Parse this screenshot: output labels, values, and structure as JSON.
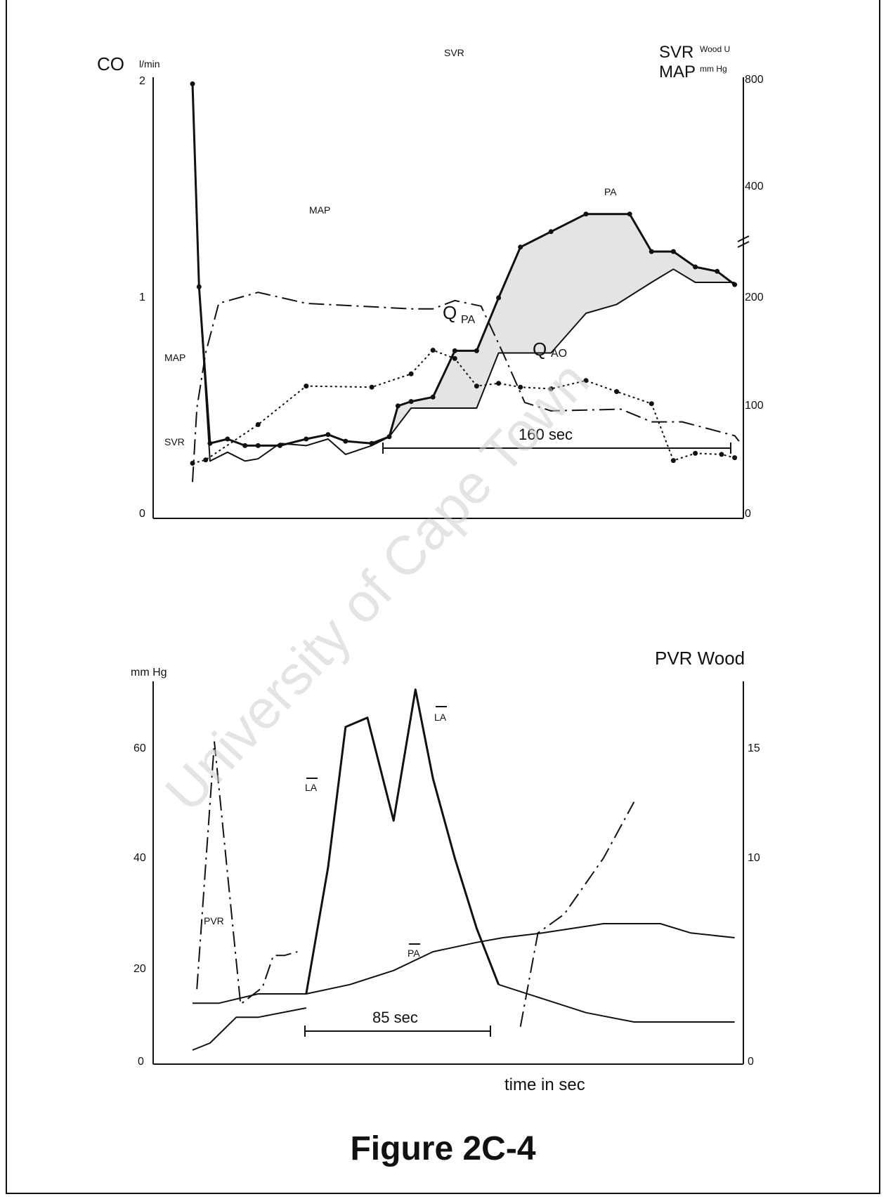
{
  "figure_caption": "Figure 2C-4",
  "watermark": "University of Cape Town",
  "chart_data": [
    {
      "type": "line",
      "title": "",
      "left_axis": {
        "label": "CO",
        "unit": "l/min",
        "range": [
          0,
          2
        ],
        "ticks": [
          "0",
          "1",
          "2"
        ]
      },
      "right_axis": {
        "label_1": "SVR",
        "unit_1": "Wood U",
        "label_2": "MAP",
        "unit_2": "mm Hg",
        "range": [
          0,
          800
        ],
        "ticks": [
          "0",
          "100",
          "200",
          "400",
          "800"
        ]
      },
      "annotations": {
        "duration": "160 sec",
        "qpa": "Q",
        "qpa_sub": "PA",
        "qao": "Q",
        "qao_sub": "AO",
        "pa_label": "PA",
        "svr_top": "SVR",
        "svr_left": "SVR",
        "map_left": "MAP",
        "map_mid": "MAP"
      },
      "x_range": [
        0,
        270
      ],
      "series": [
        {
          "name": "SVR",
          "style": "dash-dot",
          "axis": "right",
          "x": [
            18,
            20,
            24,
            30,
            48,
            70,
            118,
            128,
            138,
            150,
            160,
            170,
            182,
            214,
            228,
            242,
            266,
            268
          ],
          "y": [
            66,
            200,
            300,
            390,
            410,
            390,
            380,
            380,
            395,
            385,
            300,
            210,
            195,
            198,
            175,
            175,
            150,
            140
          ]
        },
        {
          "name": "MAP",
          "style": "dotted",
          "axis": "right",
          "x": [
            18,
            24,
            48,
            70,
            100,
            118,
            128,
            138,
            148,
            158,
            168,
            182,
            198,
            212,
            228,
            238,
            248,
            260,
            266
          ],
          "y": [
            100,
            106,
            170,
            240,
            238,
            262,
            305,
            290,
            240,
            245,
            238,
            235,
            250,
            230,
            208,
            105,
            118,
            116,
            110
          ]
        },
        {
          "name": "QPA",
          "style": "solid-bold-dots",
          "x": [
            18,
            21,
            26,
            34,
            42,
            48,
            58,
            70,
            80,
            88,
            100,
            108,
            112,
            118,
            128,
            138,
            148,
            158,
            168,
            182,
            198,
            218,
            228,
            238,
            248,
            258,
            266
          ],
          "y": [
            1.97,
            1.05,
            0.34,
            0.36,
            0.33,
            0.33,
            0.33,
            0.36,
            0.38,
            0.35,
            0.34,
            0.37,
            0.51,
            0.53,
            0.55,
            0.76,
            0.76,
            1.0,
            1.23,
            1.3,
            1.38,
            1.38,
            1.21,
            1.21,
            1.14,
            1.12,
            1.06
          ]
        },
        {
          "name": "QAO",
          "style": "solid",
          "x": [
            18,
            21,
            26,
            34,
            42,
            48,
            58,
            70,
            80,
            88,
            100,
            108,
            118,
            128,
            138,
            148,
            158,
            168,
            182,
            198,
            212,
            228,
            238,
            248,
            266
          ],
          "y": [
            1.97,
            1.05,
            0.26,
            0.3,
            0.26,
            0.27,
            0.34,
            0.33,
            0.36,
            0.29,
            0.33,
            0.37,
            0.5,
            0.5,
            0.5,
            0.5,
            0.75,
            0.75,
            0.75,
            0.93,
            0.97,
            1.07,
            1.13,
            1.07,
            1.07
          ]
        }
      ]
    },
    {
      "type": "line",
      "title": "",
      "xlabel": "time in sec",
      "left_axis": {
        "label": "mm Hg",
        "range": [
          0,
          75
        ],
        "ticks": [
          "0",
          "20",
          "40",
          "60"
        ]
      },
      "right_axis": {
        "label": "PVR Wood",
        "range": [
          0,
          18.75
        ],
        "ticks": [
          "0",
          "10",
          "15"
        ]
      },
      "annotations": {
        "duration": "85 sec",
        "la_label_1": "LA",
        "la_label_2": "LA",
        "pa_label": "PA",
        "pvr_label": "PVR"
      },
      "x_range": [
        0,
        270
      ],
      "series": [
        {
          "name": "PVR",
          "style": "dash-dot",
          "axis": "right",
          "x": [
            20,
            28,
            40,
            50,
            55,
            60,
            66
          ],
          "y": [
            4,
            17.2,
            3.2,
            4.1,
            5.8,
            5.8,
            6.0
          ]
        },
        {
          "name": "PVR (late)",
          "style": "dash-dot",
          "axis": "right",
          "x": [
            168,
            176,
            188,
            206,
            220
          ],
          "y": [
            2,
            7,
            8,
            11,
            14
          ]
        },
        {
          "name": "LA",
          "style": "solid-bold",
          "x": [
            70,
            80,
            88,
            98,
            110,
            120,
            128,
            138,
            148,
            158
          ],
          "y": [
            15,
            42,
            72,
            74,
            52,
            80,
            61,
            44,
            29,
            17
          ]
        },
        {
          "name": "PA",
          "style": "solid",
          "x": [
            18,
            30,
            48,
            70,
            90,
            110,
            128,
            148,
            160,
            178,
            206,
            232,
            246,
            266
          ],
          "y": [
            13,
            13,
            15,
            15,
            17,
            20,
            24,
            26,
            27,
            28,
            30,
            30,
            28,
            27
          ]
        },
        {
          "name": "PA (lower)",
          "style": "solid",
          "x": [
            18,
            26,
            38,
            48,
            70
          ],
          "y": [
            3,
            4.5,
            10,
            10,
            12
          ]
        },
        {
          "name": "LA (decay)",
          "style": "solid",
          "x": [
            158,
            178,
            198,
            220,
            240,
            266
          ],
          "y": [
            17,
            14,
            11,
            9,
            9,
            9
          ]
        }
      ]
    }
  ]
}
